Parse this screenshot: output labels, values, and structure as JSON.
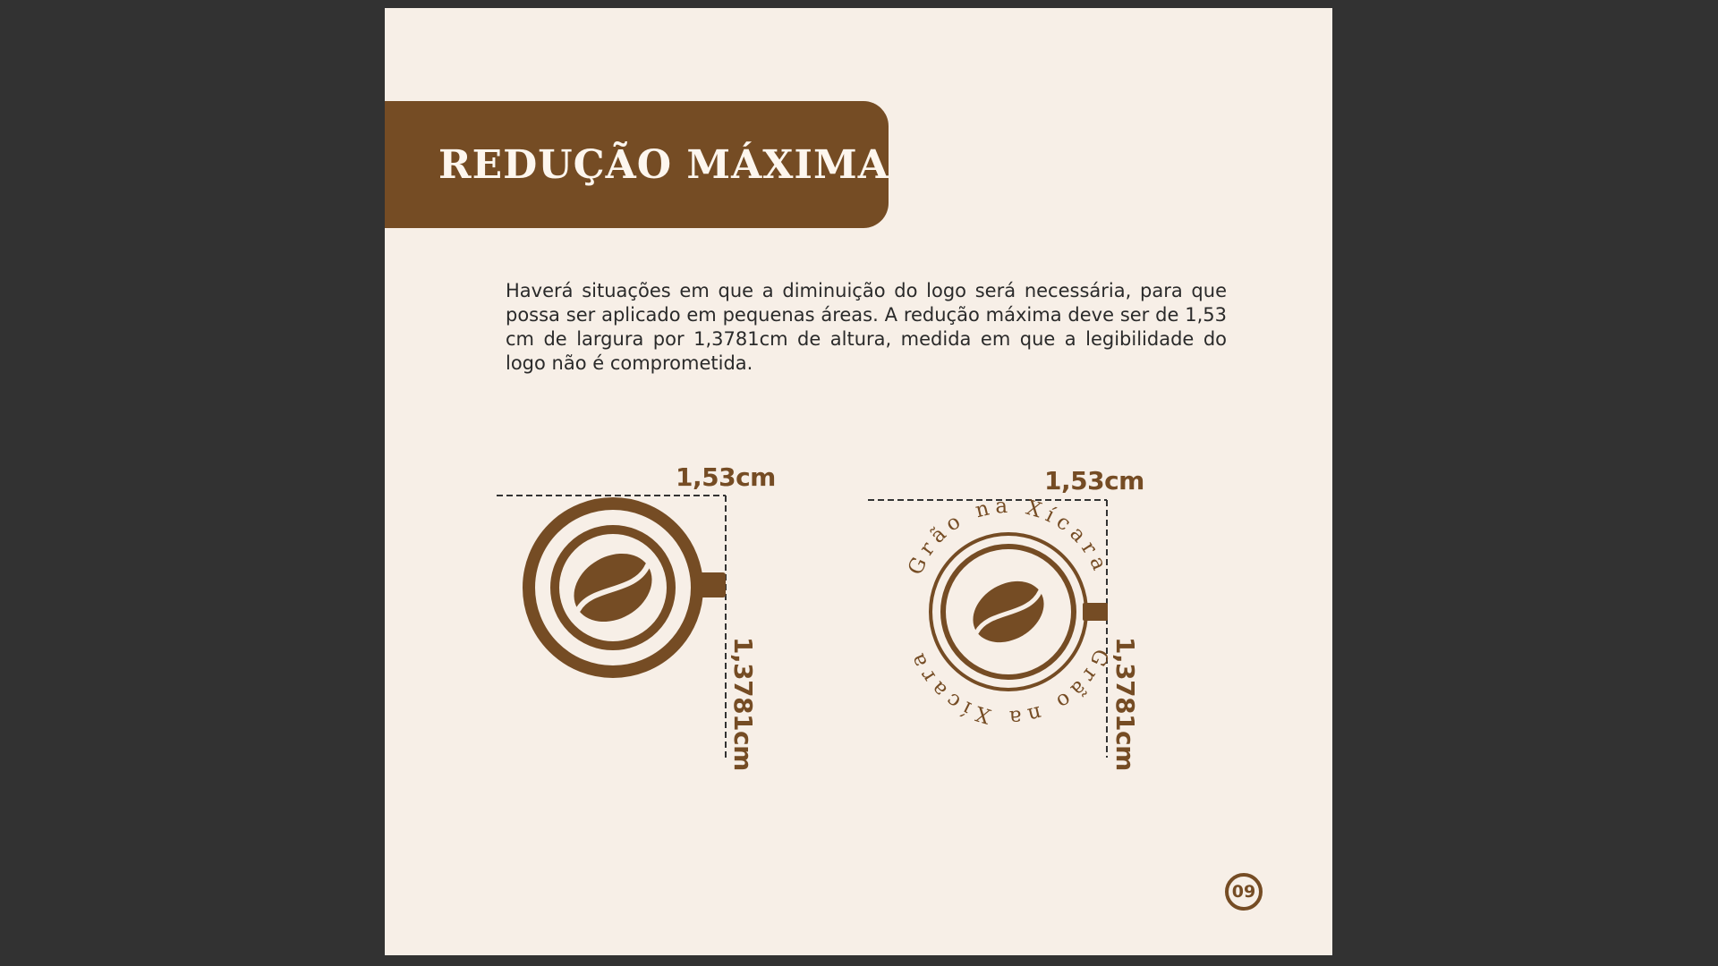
{
  "document": {
    "title": "REDUÇÃO MÁXIMA",
    "body": "Haverá situações em que a diminuição do logo será necessária, para que possa ser aplicado em pequenas áreas. A redução máxima deve ser de 1,53 cm de largura por 1,3781cm de altura, medida em que a legibilidade do logo não é comprometida.",
    "page_number": "09"
  },
  "logos": {
    "symbol": {
      "width_label": "1,53cm",
      "height_label": "1,3781cm"
    },
    "badge": {
      "width_label": "1,53cm",
      "height_label": "1,3781cm",
      "ring_text_top": "Grão na Xícara",
      "ring_text_bottom": "Grão na Xícara"
    }
  },
  "colors": {
    "brand_brown": "#754c24",
    "page_background": "#f7efe7",
    "viewer_background": "#323232",
    "title_text": "#fdf6ee",
    "body_text": "#2a2a2a"
  }
}
